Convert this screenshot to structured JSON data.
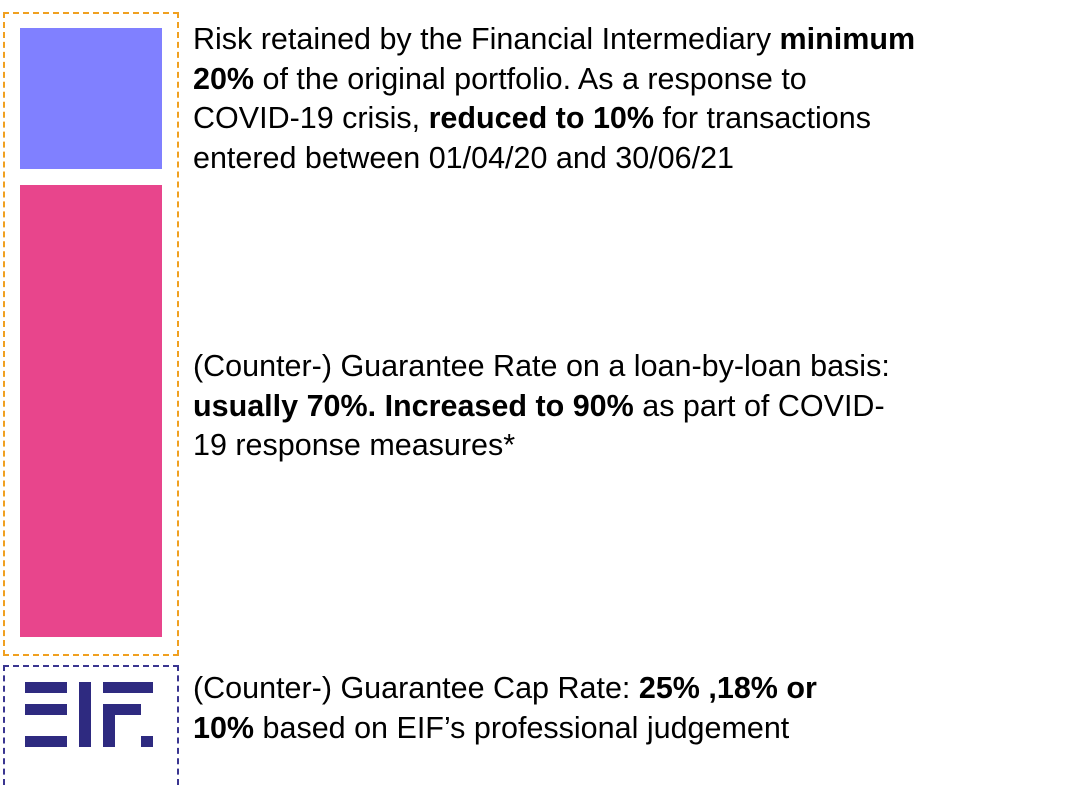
{
  "blocks": [
    {
      "lines": [
        [
          {
            "text": "Risk retained by the Financial Intermediary ",
            "bold": false
          },
          {
            "text": "minimum",
            "bold": true
          }
        ],
        [
          {
            "text": "20%",
            "bold": true
          },
          {
            "text": " of the original portfolio. As a response to",
            "bold": false
          }
        ],
        [
          {
            "text": "COVID-19 crisis, ",
            "bold": false
          },
          {
            "text": "reduced to 10%",
            "bold": true
          },
          {
            "text": " for transactions",
            "bold": false
          }
        ],
        [
          {
            "text": "entered between 01/04/20 and 30/06/21",
            "bold": false
          }
        ]
      ]
    },
    {
      "lines": [
        [
          {
            "text": "(Counter-) Guarantee Rate on a loan-by-loan basis:",
            "bold": false
          }
        ],
        [
          {
            "text": "usually 70%. Increased to 90%",
            "bold": true
          },
          {
            "text": " as part of COVID-",
            "bold": false
          }
        ],
        [
          {
            "text": "19 response measures*",
            "bold": false
          }
        ]
      ]
    },
    {
      "lines": [
        [
          {
            "text": "(Counter-) Guarantee Cap Rate: ",
            "bold": false
          },
          {
            "text": "25% ,18% or",
            "bold": true
          }
        ],
        [
          {
            "text": "10%",
            "bold": true
          },
          {
            "text": " based on EIF’s professional judgement",
            "bold": false
          }
        ]
      ]
    }
  ]
}
